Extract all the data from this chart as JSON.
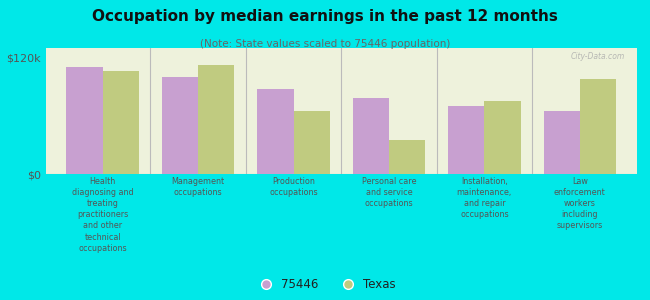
{
  "title": "Occupation by median earnings in the past 12 months",
  "subtitle": "(Note: State values scaled to 75446 population)",
  "background_color": "#00e8e8",
  "plot_background": "#eef2dc",
  "categories": [
    "Health\ndiagnosing and\ntreating\npractitioners\nand other\ntechnical\noccupations",
    "Management\noccupations",
    "Production\noccupations",
    "Personal care\nand service\noccupations",
    "Installation,\nmaintenance,\nand repair\noccupations",
    "Law\nenforcement\nworkers\nincluding\nsupervisors"
  ],
  "values_75446": [
    110000,
    100000,
    88000,
    78000,
    70000,
    65000
  ],
  "values_texas": [
    106000,
    112000,
    65000,
    35000,
    75000,
    98000
  ],
  "color_75446": "#c8a0d0",
  "color_texas": "#c0cb80",
  "ylabel": "",
  "ylim": [
    0,
    130000
  ],
  "yticks": [
    0,
    120000
  ],
  "ytick_labels": [
    "$0",
    "$120k"
  ],
  "bar_width": 0.38,
  "legend_labels": [
    "75446",
    "Texas"
  ],
  "watermark": "City-Data.com"
}
